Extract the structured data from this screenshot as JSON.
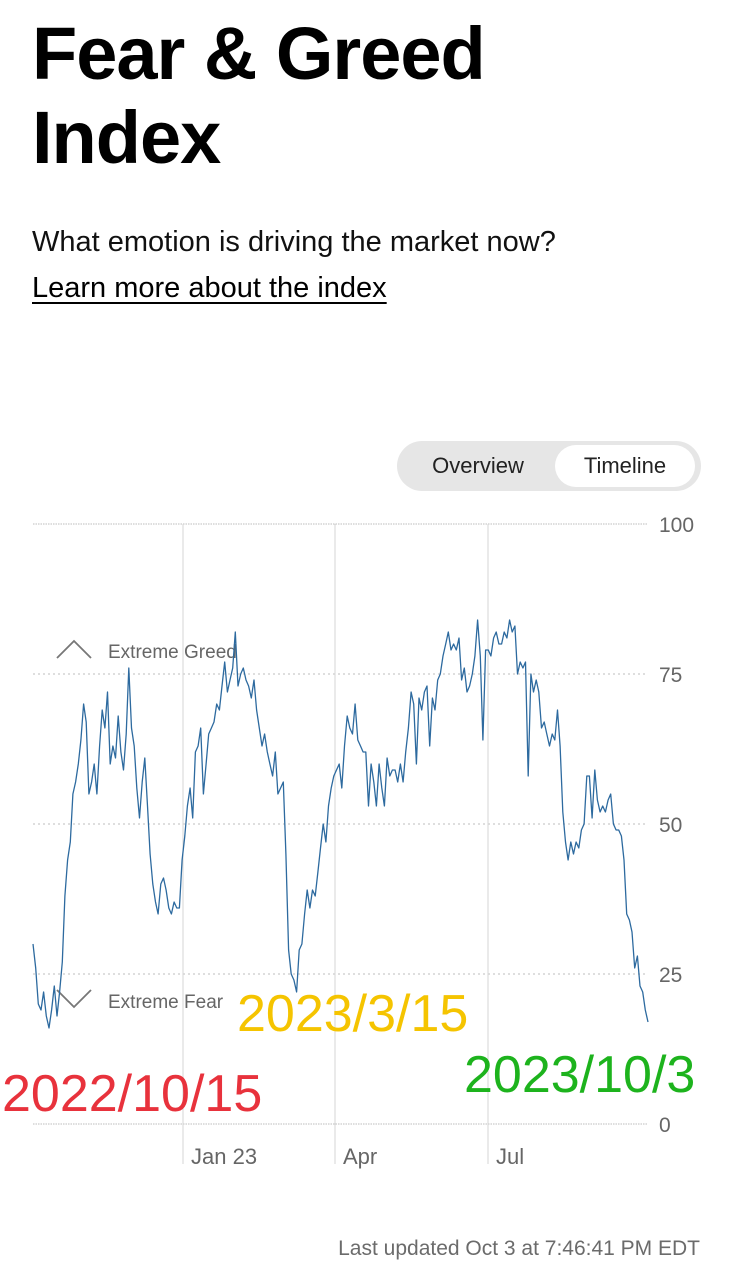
{
  "header": {
    "title": "Fear & Greed Index",
    "subtitle": "What emotion is driving the market now?",
    "learn_more": "Learn more about the index"
  },
  "toggle": {
    "overview": "Overview",
    "timeline": "Timeline",
    "selected": "Timeline"
  },
  "footer": {
    "last_updated": "Last updated Oct 3 at 7:46:41 PM EDT"
  },
  "colors": {
    "line": "#2d6a9f",
    "annotation_red": "#e8323c",
    "annotation_orange": "#f5c400",
    "annotation_green": "#1db31d"
  },
  "chart_data": {
    "type": "line",
    "y_ticks": [
      "100",
      "75",
      "50",
      "25",
      "0"
    ],
    "x_ticks": [
      "Jan 23",
      "Apr",
      "Jul"
    ],
    "ylim": [
      0,
      100
    ],
    "zone_labels": {
      "greed": "Extreme Greed",
      "fear": "Extreme Fear"
    },
    "annotations": [
      {
        "text": "2022/10/15",
        "color": "#e8323c"
      },
      {
        "text": "2023/3/15",
        "color": "#f5c400"
      },
      {
        "text": "2023/10/3",
        "color": "#1db31d"
      }
    ],
    "series": [
      {
        "values": [
          30,
          26,
          20,
          19,
          22,
          18,
          16,
          19,
          23,
          18,
          22,
          27,
          38,
          44,
          47,
          55,
          57,
          60,
          64,
          70,
          67,
          55,
          57,
          60,
          55,
          63,
          69,
          66,
          72,
          60,
          63,
          61,
          68,
          62,
          59,
          65,
          76,
          66,
          63,
          56,
          51,
          57,
          61,
          53,
          45,
          40,
          37,
          35,
          40,
          41,
          39,
          36,
          35,
          37,
          36,
          36,
          44,
          48,
          53,
          56,
          51,
          62,
          63,
          66,
          55,
          60,
          65,
          66,
          67,
          70,
          69,
          73,
          77,
          72,
          74,
          76,
          82,
          73,
          75,
          76,
          74,
          73,
          71,
          74,
          69,
          66,
          63,
          65,
          62,
          60,
          58,
          62,
          55,
          56,
          57,
          45,
          29,
          25,
          24,
          22,
          29,
          30,
          35,
          39,
          36,
          39,
          38,
          42,
          46,
          50,
          47,
          53,
          56,
          58,
          59,
          60,
          56,
          63,
          68,
          66,
          65,
          70,
          64,
          63,
          62,
          62,
          53,
          60,
          57,
          53,
          60,
          56,
          53,
          61,
          58,
          59,
          59,
          57,
          60,
          57,
          62,
          66,
          72,
          70,
          60,
          71,
          69,
          72,
          73,
          63,
          71,
          69,
          74,
          75,
          78,
          80,
          82,
          79,
          80,
          79,
          81,
          74,
          76,
          72,
          73,
          75,
          78,
          84,
          78,
          64,
          79,
          79,
          78,
          81,
          82,
          80,
          80,
          82,
          81,
          84,
          82,
          83,
          75,
          77,
          76,
          77,
          58,
          75,
          72,
          74,
          72,
          66,
          67,
          65,
          63,
          65,
          64,
          69,
          63,
          52,
          47,
          44,
          47,
          45,
          47,
          46,
          49,
          50,
          58,
          58,
          51,
          59,
          54,
          52,
          53,
          52,
          54,
          55,
          50,
          49,
          49,
          48,
          44,
          35,
          34,
          32,
          26,
          28,
          23,
          22,
          19,
          17
        ]
      }
    ]
  }
}
